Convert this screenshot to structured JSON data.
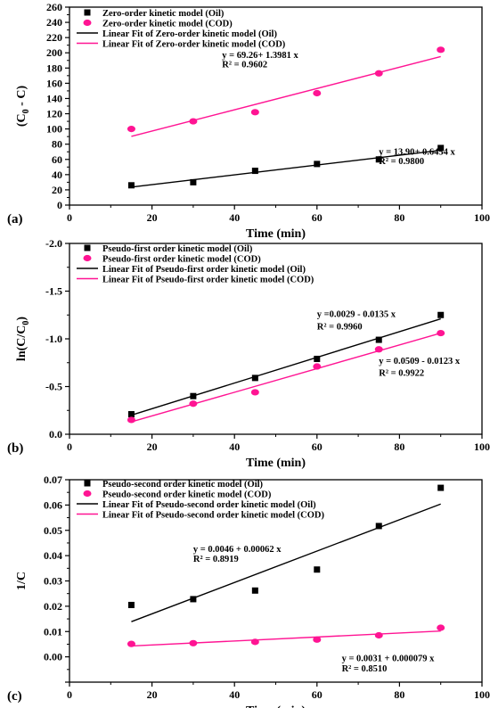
{
  "colors": {
    "oil": "#000000",
    "cod": "#ff1493"
  },
  "chart_data": [
    {
      "type": "scatter",
      "panel_label": "(a)",
      "xlabel": "Time (min)",
      "ylabel": "(C",
      "ylabel_sub": "0",
      "ylabel_tail": " - C)",
      "xlim": [
        0,
        100
      ],
      "ylim": [
        0,
        260
      ],
      "xticks": [
        0,
        20,
        40,
        60,
        80,
        100
      ],
      "yticks": [
        0,
        20,
        40,
        60,
        80,
        100,
        120,
        140,
        160,
        180,
        200,
        220,
        240,
        260
      ],
      "y_reversed": false,
      "series": [
        {
          "name": "Zero-order kinetic model (Oil)",
          "marker": "square",
          "color": "#000000",
          "x": [
            15,
            30,
            45,
            60,
            75,
            90
          ],
          "y": [
            26,
            30,
            45,
            54,
            60,
            75
          ]
        },
        {
          "name": "Zero-order kinetic model (COD)",
          "marker": "circle",
          "color": "#ff1493",
          "x": [
            15,
            30,
            45,
            60,
            75,
            90
          ],
          "y": [
            100,
            110,
            122,
            147,
            173,
            204
          ]
        }
      ],
      "fits": [
        {
          "name": "Linear Fit of Zero-order kinetic model (Oil)",
          "color": "#000000",
          "x": [
            15,
            90
          ],
          "y": [
            23.6,
            72.0
          ]
        },
        {
          "name": "Linear Fit of Zero-order kinetic model (COD)",
          "color": "#ff1493",
          "x": [
            15,
            90
          ],
          "y": [
            90.2,
            195.1
          ]
        }
      ],
      "equations": [
        {
          "text": "y = 69.26+ 1.3981 x",
          "r2": "R² = 0.9602",
          "ex": 37,
          "ey": 193,
          "ry": 181
        },
        {
          "text": "y = 13.90+ 0.6454 x",
          "r2": "R² = 0.9800",
          "ex": 75,
          "ey": 66,
          "ry": 54
        }
      ]
    },
    {
      "type": "scatter",
      "panel_label": "(b)",
      "xlabel": "Time (min)",
      "ylabel": "ln(C/C",
      "ylabel_sub": "0",
      "ylabel_tail": ")",
      "xlim": [
        0,
        100
      ],
      "ylim": [
        0,
        -2.0
      ],
      "xticks": [
        0,
        20,
        40,
        60,
        80,
        100
      ],
      "yticks": [
        0.0,
        -0.5,
        -1.0,
        -1.5,
        -2.0
      ],
      "y_reversed": true,
      "series": [
        {
          "name": "Pseudo-first order kinetic model (Oil)",
          "marker": "square",
          "color": "#000000",
          "x": [
            15,
            30,
            45,
            60,
            75,
            90
          ],
          "y": [
            -0.21,
            -0.4,
            -0.59,
            -0.79,
            -0.99,
            -1.25
          ]
        },
        {
          "name": "Pseudo-first order kinetic model (COD)",
          "marker": "circle",
          "color": "#ff1493",
          "x": [
            15,
            30,
            45,
            60,
            75,
            90
          ],
          "y": [
            -0.15,
            -0.32,
            -0.44,
            -0.71,
            -0.89,
            -1.06
          ]
        }
      ],
      "fits": [
        {
          "name": "Linear Fit of Pseudo-first order kinetic model (Oil)",
          "color": "#000000",
          "x": [
            15,
            90
          ],
          "y": [
            -0.2,
            -1.21
          ]
        },
        {
          "name": "Linear Fit of Pseudo-first order kinetic model (COD)",
          "color": "#ff1493",
          "x": [
            15,
            90
          ],
          "y": [
            -0.13,
            -1.06
          ]
        }
      ],
      "equations": [
        {
          "text": "y =0.0029 - 0.0135 x",
          "r2": "R² = 0.9960",
          "ex": 60,
          "ey": -1.23,
          "ry": -1.1
        },
        {
          "text": "y = 0.0509 - 0.0123 x",
          "r2": "R² = 0.9922",
          "ex": 75,
          "ey": -0.74,
          "ry": -0.61
        }
      ]
    },
    {
      "type": "scatter",
      "panel_label": "(c)",
      "xlabel": "Time (min)",
      "ylabel": "1/C",
      "ylabel_sub": "",
      "ylabel_tail": "",
      "xlim": [
        0,
        100
      ],
      "ylim": [
        -0.01,
        0.07
      ],
      "xticks": [
        0,
        20,
        40,
        60,
        80,
        100
      ],
      "yticks": [
        -0.01,
        0.0,
        0.01,
        0.02,
        0.03,
        0.04,
        0.05,
        0.06,
        0.07
      ],
      "ytick_labels": [
        "",
        "0.00",
        "0.01",
        "0.02",
        "0.03",
        "0.04",
        "0.05",
        "0.06",
        "0.07"
      ],
      "y_reversed": false,
      "series": [
        {
          "name": "Pseudo-second order kinetic model (Oil)",
          "marker": "square",
          "color": "#000000",
          "x": [
            15,
            30,
            45,
            60,
            75,
            90
          ],
          "y": [
            0.0205,
            0.0228,
            0.0262,
            0.0345,
            0.0517,
            0.0668
          ]
        },
        {
          "name": "Pseudo-second order kinetic model (COD)",
          "marker": "circle",
          "color": "#ff1493",
          "x": [
            15,
            30,
            45,
            60,
            75,
            90
          ],
          "y": [
            0.0051,
            0.0054,
            0.0059,
            0.0068,
            0.0085,
            0.0115
          ]
        }
      ],
      "fits": [
        {
          "name": "Linear Fit of Pseudo-second order kinetic model (Oil)",
          "color": "#000000",
          "x": [
            15,
            90
          ],
          "y": [
            0.0139,
            0.0604
          ]
        },
        {
          "name": "Linear Fit of Pseudo-second order kinetic model (COD)",
          "color": "#ff1493",
          "x": [
            15,
            90
          ],
          "y": [
            0.0043,
            0.0102
          ]
        }
      ],
      "equations": [
        {
          "text": "y =  0.0046 + 0.00062 x",
          "r2": "R² = 0.8919",
          "ex": 30,
          "ey": 0.0415,
          "ry": 0.0375
        },
        {
          "text": "y =  0.0031 + 0.000079 x",
          "r2": "R² = 0.8510",
          "ex": 66,
          "ey": -0.0017,
          "ry": -0.0057
        }
      ]
    }
  ]
}
